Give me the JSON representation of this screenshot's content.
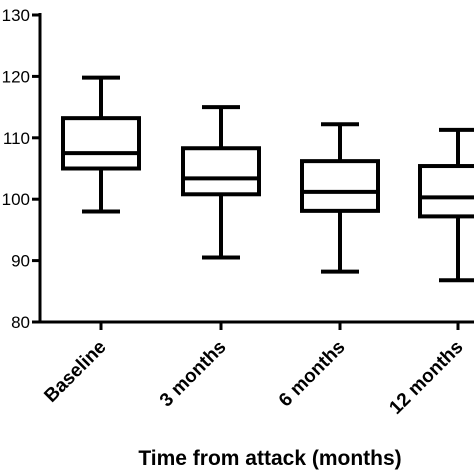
{
  "chart_data": {
    "type": "box",
    "categories": [
      "Baseline",
      "3 months",
      "6 months",
      "12 months"
    ],
    "boxes": [
      {
        "category": "Baseline",
        "min": 98,
        "q1": 105,
        "median": 107.5,
        "q3": 113.2,
        "max": 119.8
      },
      {
        "category": "3 months",
        "min": 90.5,
        "q1": 100.8,
        "median": 103.4,
        "q3": 108.3,
        "max": 115
      },
      {
        "category": "6 months",
        "min": 88.2,
        "q1": 98.1,
        "median": 101.2,
        "q3": 106.2,
        "max": 112.2
      },
      {
        "category": "12 months",
        "min": 86.8,
        "q1": 97.2,
        "median": 100.3,
        "q3": 105.4,
        "max": 111.3
      }
    ],
    "title": "",
    "xlabel": "Time from attack (months)",
    "ylabel": "",
    "ylim": [
      80,
      130
    ],
    "yticks": [
      80,
      90,
      100,
      110,
      120,
      130
    ],
    "grid": false,
    "legend": "none"
  }
}
